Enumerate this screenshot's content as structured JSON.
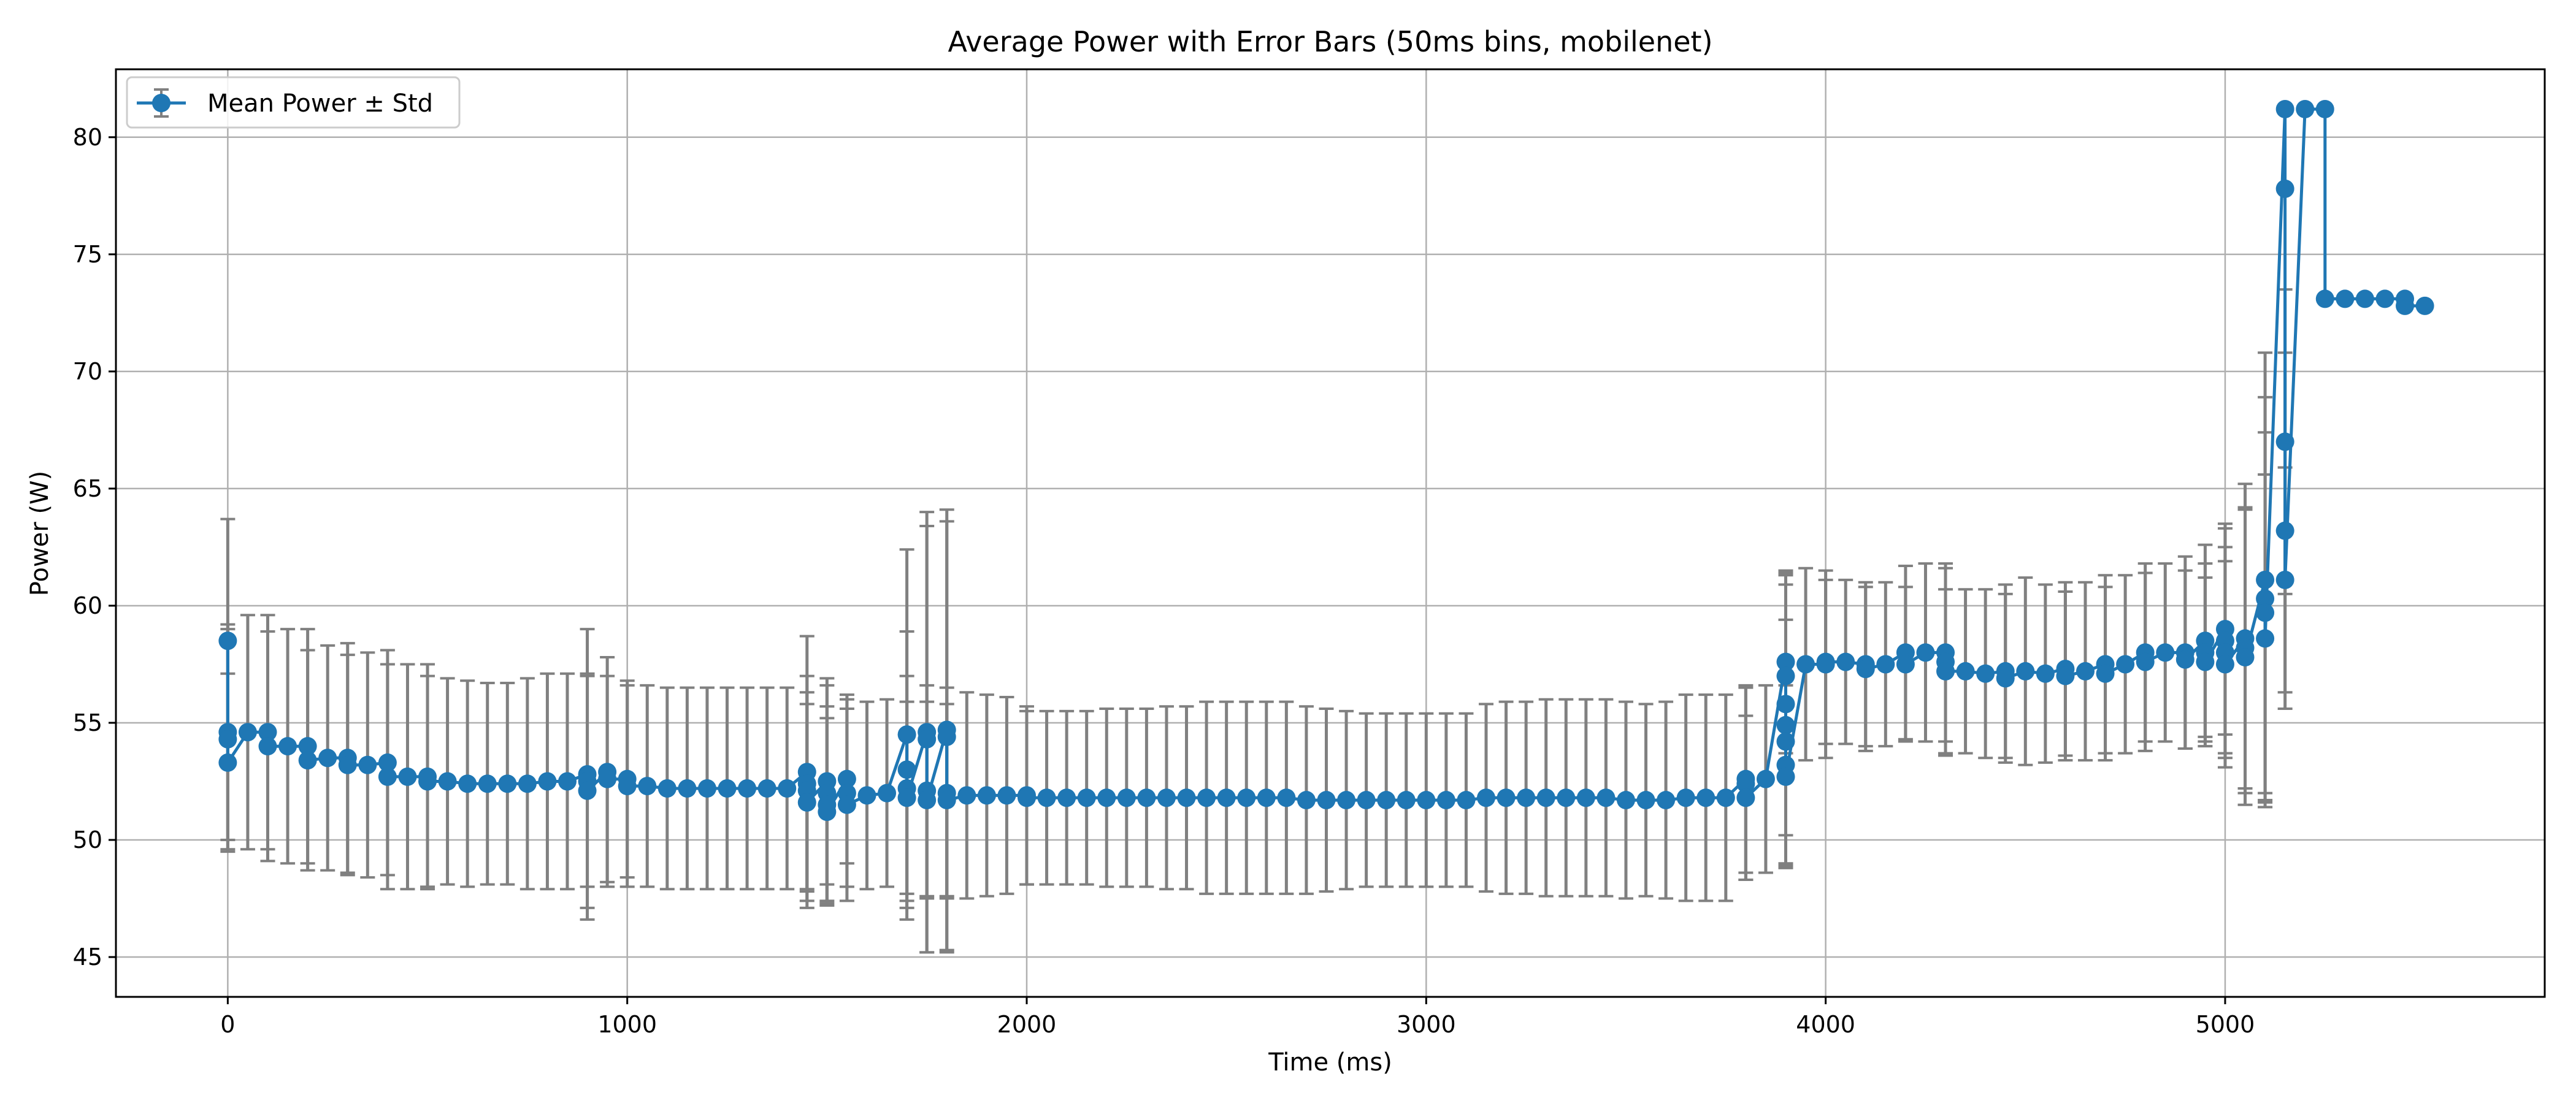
{
  "chart_data": {
    "type": "line",
    "title": "Average Power with Error Bars (50ms bins, mobilenet)",
    "xlabel": "Time (ms)",
    "ylabel": "Power (W)",
    "xlim": [
      -280,
      5800
    ],
    "ylim": [
      43.3,
      82.9
    ],
    "xticks": [
      0,
      1000,
      2000,
      3000,
      4000,
      5000
    ],
    "yticks": [
      45,
      50,
      55,
      60,
      65,
      70,
      75,
      80
    ],
    "grid": true,
    "legend_position": "top-left",
    "colors": {
      "series": "#1f77b4",
      "error_bars": "#808080",
      "grid": "#b0b0b0"
    },
    "series": [
      {
        "name": "Mean Power ± Std",
        "points": [
          {
            "x": 0,
            "y": 58.5,
            "err": 5.2
          },
          {
            "x": 0,
            "y": 54.6,
            "err": 4.6
          },
          {
            "x": 0,
            "y": 54.3,
            "err": 4.7
          },
          {
            "x": 0,
            "y": 53.3,
            "err": 3.8
          },
          {
            "x": 50,
            "y": 54.6,
            "err": 5.0
          },
          {
            "x": 100,
            "y": 54.6,
            "err": 5.0
          },
          {
            "x": 100,
            "y": 54.0,
            "err": 4.9
          },
          {
            "x": 150,
            "y": 54.0,
            "err": 5.0
          },
          {
            "x": 200,
            "y": 54.0,
            "err": 5.0
          },
          {
            "x": 200,
            "y": 53.4,
            "err": 4.7
          },
          {
            "x": 250,
            "y": 53.5,
            "err": 4.8
          },
          {
            "x": 300,
            "y": 53.5,
            "err": 4.9
          },
          {
            "x": 300,
            "y": 53.2,
            "err": 4.7
          },
          {
            "x": 350,
            "y": 53.2,
            "err": 4.8
          },
          {
            "x": 400,
            "y": 53.3,
            "err": 4.8
          },
          {
            "x": 400,
            "y": 52.7,
            "err": 4.8
          },
          {
            "x": 450,
            "y": 52.7,
            "err": 4.8
          },
          {
            "x": 500,
            "y": 52.7,
            "err": 4.8
          },
          {
            "x": 500,
            "y": 52.5,
            "err": 4.5
          },
          {
            "x": 550,
            "y": 52.5,
            "err": 4.4
          },
          {
            "x": 600,
            "y": 52.4,
            "err": 4.4
          },
          {
            "x": 650,
            "y": 52.4,
            "err": 4.3
          },
          {
            "x": 700,
            "y": 52.4,
            "err": 4.3
          },
          {
            "x": 750,
            "y": 52.4,
            "err": 4.5
          },
          {
            "x": 800,
            "y": 52.5,
            "err": 4.6
          },
          {
            "x": 850,
            "y": 52.5,
            "err": 4.6
          },
          {
            "x": 900,
            "y": 52.8,
            "err": 6.2
          },
          {
            "x": 900,
            "y": 52.5,
            "err": 4.5
          },
          {
            "x": 900,
            "y": 52.1,
            "err": 5.0
          },
          {
            "x": 950,
            "y": 52.9,
            "err": 4.9
          },
          {
            "x": 950,
            "y": 52.6,
            "err": 4.4
          },
          {
            "x": 1000,
            "y": 52.6,
            "err": 4.2
          },
          {
            "x": 1000,
            "y": 52.3,
            "err": 4.3
          },
          {
            "x": 1050,
            "y": 52.3,
            "err": 4.3
          },
          {
            "x": 1100,
            "y": 52.2,
            "err": 4.3
          },
          {
            "x": 1150,
            "y": 52.2,
            "err": 4.3
          },
          {
            "x": 1200,
            "y": 52.2,
            "err": 4.3
          },
          {
            "x": 1250,
            "y": 52.2,
            "err": 4.3
          },
          {
            "x": 1300,
            "y": 52.2,
            "err": 4.3
          },
          {
            "x": 1350,
            "y": 52.2,
            "err": 4.3
          },
          {
            "x": 1400,
            "y": 52.2,
            "err": 4.3
          },
          {
            "x": 1450,
            "y": 52.9,
            "err": 5.8
          },
          {
            "x": 1450,
            "y": 52.4,
            "err": 4.6
          },
          {
            "x": 1450,
            "y": 52.1,
            "err": 4.2
          },
          {
            "x": 1450,
            "y": 51.6,
            "err": 4.2
          },
          {
            "x": 1500,
            "y": 52.5,
            "err": 4.4
          },
          {
            "x": 1500,
            "y": 52.0,
            "err": 4.6
          },
          {
            "x": 1500,
            "y": 51.5,
            "err": 4.2
          },
          {
            "x": 1500,
            "y": 51.2,
            "err": 4.0
          },
          {
            "x": 1550,
            "y": 52.6,
            "err": 3.6
          },
          {
            "x": 1550,
            "y": 52.0,
            "err": 4.0
          },
          {
            "x": 1550,
            "y": 51.5,
            "err": 4.1
          },
          {
            "x": 1600,
            "y": 51.9,
            "err": 4.0
          },
          {
            "x": 1650,
            "y": 52.0,
            "err": 4.0
          },
          {
            "x": 1700,
            "y": 54.5,
            "err": 7.9
          },
          {
            "x": 1700,
            "y": 53.0,
            "err": 5.9
          },
          {
            "x": 1700,
            "y": 52.2,
            "err": 4.8
          },
          {
            "x": 1700,
            "y": 51.8,
            "err": 4.1
          },
          {
            "x": 1750,
            "y": 54.6,
            "err": 9.4
          },
          {
            "x": 1750,
            "y": 54.3,
            "err": 9.1
          },
          {
            "x": 1750,
            "y": 52.1,
            "err": 4.5
          },
          {
            "x": 1750,
            "y": 51.7,
            "err": 4.2
          },
          {
            "x": 1800,
            "y": 54.7,
            "err": 9.4
          },
          {
            "x": 1800,
            "y": 54.4,
            "err": 9.2
          },
          {
            "x": 1800,
            "y": 52.0,
            "err": 4.5
          },
          {
            "x": 1800,
            "y": 51.7,
            "err": 4.1
          },
          {
            "x": 1850,
            "y": 51.9,
            "err": 4.4
          },
          {
            "x": 1900,
            "y": 51.9,
            "err": 4.3
          },
          {
            "x": 1950,
            "y": 51.9,
            "err": 4.2
          },
          {
            "x": 2000,
            "y": 51.9,
            "err": 3.8
          },
          {
            "x": 2000,
            "y": 51.8,
            "err": 3.7
          },
          {
            "x": 2050,
            "y": 51.8,
            "err": 3.7
          },
          {
            "x": 2100,
            "y": 51.8,
            "err": 3.7
          },
          {
            "x": 2150,
            "y": 51.8,
            "err": 3.7
          },
          {
            "x": 2200,
            "y": 51.8,
            "err": 3.8
          },
          {
            "x": 2250,
            "y": 51.8,
            "err": 3.8
          },
          {
            "x": 2300,
            "y": 51.8,
            "err": 3.8
          },
          {
            "x": 2350,
            "y": 51.8,
            "err": 3.9
          },
          {
            "x": 2400,
            "y": 51.8,
            "err": 3.9
          },
          {
            "x": 2450,
            "y": 51.8,
            "err": 4.1
          },
          {
            "x": 2500,
            "y": 51.8,
            "err": 4.1
          },
          {
            "x": 2550,
            "y": 51.8,
            "err": 4.1
          },
          {
            "x": 2600,
            "y": 51.8,
            "err": 4.1
          },
          {
            "x": 2650,
            "y": 51.8,
            "err": 4.1
          },
          {
            "x": 2700,
            "y": 51.7,
            "err": 4.0
          },
          {
            "x": 2750,
            "y": 51.7,
            "err": 3.9
          },
          {
            "x": 2800,
            "y": 51.7,
            "err": 3.8
          },
          {
            "x": 2850,
            "y": 51.7,
            "err": 3.7
          },
          {
            "x": 2900,
            "y": 51.7,
            "err": 3.7
          },
          {
            "x": 2950,
            "y": 51.7,
            "err": 3.7
          },
          {
            "x": 3000,
            "y": 51.7,
            "err": 3.7
          },
          {
            "x": 3050,
            "y": 51.7,
            "err": 3.7
          },
          {
            "x": 3100,
            "y": 51.7,
            "err": 3.7
          },
          {
            "x": 3150,
            "y": 51.8,
            "err": 4.0
          },
          {
            "x": 3200,
            "y": 51.8,
            "err": 4.1
          },
          {
            "x": 3250,
            "y": 51.8,
            "err": 4.1
          },
          {
            "x": 3300,
            "y": 51.8,
            "err": 4.2
          },
          {
            "x": 3350,
            "y": 51.8,
            "err": 4.2
          },
          {
            "x": 3400,
            "y": 51.8,
            "err": 4.2
          },
          {
            "x": 3450,
            "y": 51.8,
            "err": 4.2
          },
          {
            "x": 3500,
            "y": 51.7,
            "err": 4.2
          },
          {
            "x": 3550,
            "y": 51.7,
            "err": 4.1
          },
          {
            "x": 3600,
            "y": 51.7,
            "err": 4.2
          },
          {
            "x": 3650,
            "y": 51.8,
            "err": 4.4
          },
          {
            "x": 3700,
            "y": 51.8,
            "err": 4.4
          },
          {
            "x": 3750,
            "y": 51.8,
            "err": 4.4
          },
          {
            "x": 3800,
            "y": 52.6,
            "err": 4.0
          },
          {
            "x": 3800,
            "y": 52.4,
            "err": 4.1
          },
          {
            "x": 3800,
            "y": 51.8,
            "err": 3.5
          },
          {
            "x": 3850,
            "y": 52.6,
            "err": 4.0
          },
          {
            "x": 3900,
            "y": 57.6,
            "err": 3.9
          },
          {
            "x": 3900,
            "y": 57.0,
            "err": 4.3
          },
          {
            "x": 3900,
            "y": 55.8,
            "err": 5.6
          },
          {
            "x": 3900,
            "y": 54.9,
            "err": 6.0
          },
          {
            "x": 3900,
            "y": 54.2,
            "err": 5.2
          },
          {
            "x": 3900,
            "y": 53.2,
            "err": 4.3
          },
          {
            "x": 3900,
            "y": 52.7,
            "err": 3.9
          },
          {
            "x": 3950,
            "y": 57.5,
            "err": 4.1
          },
          {
            "x": 4000,
            "y": 57.5,
            "err": 4.0
          },
          {
            "x": 4000,
            "y": 57.6,
            "err": 3.5
          },
          {
            "x": 4050,
            "y": 57.6,
            "err": 3.5
          },
          {
            "x": 4100,
            "y": 57.5,
            "err": 3.5
          },
          {
            "x": 4100,
            "y": 57.3,
            "err": 3.5
          },
          {
            "x": 4150,
            "y": 57.5,
            "err": 3.5
          },
          {
            "x": 4200,
            "y": 58.0,
            "err": 3.7
          },
          {
            "x": 4200,
            "y": 57.5,
            "err": 3.3
          },
          {
            "x": 4250,
            "y": 58.0,
            "err": 3.8
          },
          {
            "x": 4300,
            "y": 58.0,
            "err": 3.8
          },
          {
            "x": 4300,
            "y": 57.6,
            "err": 4.0
          },
          {
            "x": 4300,
            "y": 57.2,
            "err": 3.5
          },
          {
            "x": 4350,
            "y": 57.2,
            "err": 3.5
          },
          {
            "x": 4400,
            "y": 57.1,
            "err": 3.6
          },
          {
            "x": 4450,
            "y": 57.2,
            "err": 3.7
          },
          {
            "x": 4450,
            "y": 56.9,
            "err": 3.6
          },
          {
            "x": 4500,
            "y": 57.2,
            "err": 4.0
          },
          {
            "x": 4550,
            "y": 57.1,
            "err": 3.8
          },
          {
            "x": 4600,
            "y": 57.3,
            "err": 3.7
          },
          {
            "x": 4600,
            "y": 57.0,
            "err": 3.6
          },
          {
            "x": 4650,
            "y": 57.2,
            "err": 3.8
          },
          {
            "x": 4700,
            "y": 57.5,
            "err": 3.8
          },
          {
            "x": 4700,
            "y": 57.1,
            "err": 3.7
          },
          {
            "x": 4750,
            "y": 57.5,
            "err": 3.8
          },
          {
            "x": 4800,
            "y": 58.0,
            "err": 3.8
          },
          {
            "x": 4800,
            "y": 57.6,
            "err": 3.8
          },
          {
            "x": 4850,
            "y": 58.0,
            "err": 3.8
          },
          {
            "x": 4900,
            "y": 58.0,
            "err": 4.1
          },
          {
            "x": 4900,
            "y": 57.7,
            "err": 3.8
          },
          {
            "x": 4950,
            "y": 58.5,
            "err": 4.1
          },
          {
            "x": 4950,
            "y": 58.0,
            "err": 3.8
          },
          {
            "x": 4950,
            "y": 57.6,
            "err": 3.6
          },
          {
            "x": 5000,
            "y": 59.0,
            "err": 4.5
          },
          {
            "x": 5000,
            "y": 58.5,
            "err": 4.8
          },
          {
            "x": 5000,
            "y": 58.0,
            "err": 4.5
          },
          {
            "x": 5000,
            "y": 57.5,
            "err": 4.4
          },
          {
            "x": 5050,
            "y": 58.6,
            "err": 6.6
          },
          {
            "x": 5050,
            "y": 58.2,
            "err": 6.0
          },
          {
            "x": 5050,
            "y": 57.8,
            "err": 6.3
          },
          {
            "x": 5100,
            "y": 61.1,
            "err": 9.7
          },
          {
            "x": 5100,
            "y": 60.3,
            "err": 8.6
          },
          {
            "x": 5100,
            "y": 59.7,
            "err": 7.7
          },
          {
            "x": 5100,
            "y": 58.6,
            "err": 7.0
          },
          {
            "x": 5150,
            "y": 81.2,
            "err": 0
          },
          {
            "x": 5150,
            "y": 77.8,
            "err": 0
          },
          {
            "x": 5150,
            "y": 67.0,
            "err": 6.5
          },
          {
            "x": 5150,
            "y": 63.2,
            "err": 7.6
          },
          {
            "x": 5150,
            "y": 61.1,
            "err": 4.8
          },
          {
            "x": 5200,
            "y": 81.2,
            "err": 0
          },
          {
            "x": 5250,
            "y": 81.2,
            "err": 0
          },
          {
            "x": 5250,
            "y": 73.1,
            "err": 0
          },
          {
            "x": 5300,
            "y": 73.1,
            "err": 0
          },
          {
            "x": 5350,
            "y": 73.1,
            "err": 0
          },
          {
            "x": 5400,
            "y": 73.1,
            "err": 0
          },
          {
            "x": 5450,
            "y": 73.1,
            "err": 0
          },
          {
            "x": 5450,
            "y": 72.8,
            "err": 0
          },
          {
            "x": 5500,
            "y": 72.8,
            "err": 0
          }
        ]
      }
    ]
  }
}
